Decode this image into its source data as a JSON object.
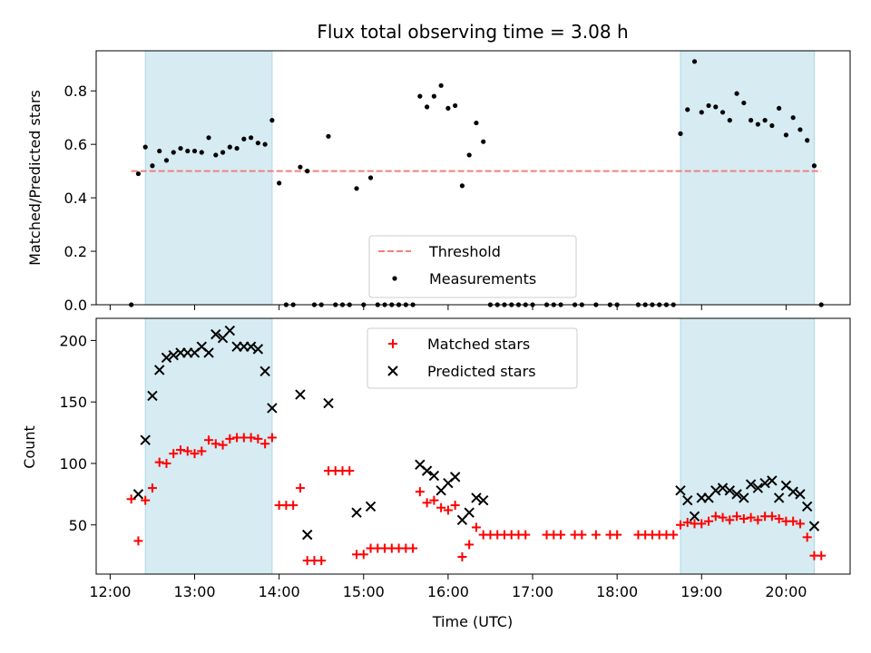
{
  "chart_data": [
    {
      "type": "scatter",
      "title": "Flux total observing time = 3.08 h",
      "ylabel": "Matched/Predicted stars",
      "xlabel": "",
      "xlim": [
        "12:00",
        "20:50"
      ],
      "ylim": [
        0,
        0.95
      ],
      "x_tick_labels": [],
      "y_ticks": [
        0.0,
        0.2,
        0.4,
        0.6,
        0.8
      ],
      "y_tick_labels": [
        "0.0",
        "0.2",
        "0.4",
        "0.6",
        "0.8"
      ],
      "shaded_intervals": [
        [
          "12:25",
          "13:55"
        ],
        [
          "18:45",
          "20:20"
        ]
      ],
      "legend": {
        "position": "bottom-center",
        "entries": [
          "Threshold",
          "Measurements"
        ]
      },
      "series": [
        {
          "name": "Threshold",
          "kind": "hline",
          "y": 0.5,
          "x_range": [
            "12:15",
            "20:25"
          ],
          "color": "#f08080"
        },
        {
          "name": "Measurements",
          "kind": "scatter",
          "color": "#000000",
          "points": [
            [
              "12:15",
              0
            ],
            [
              "12:20",
              0.49
            ],
            [
              "12:25",
              0.59
            ],
            [
              "12:30",
              0.52
            ],
            [
              "12:35",
              0.575
            ],
            [
              "12:40",
              0.54
            ],
            [
              "12:45",
              0.57
            ],
            [
              "12:50",
              0.585
            ],
            [
              "12:55",
              0.575
            ],
            [
              "13:00",
              0.575
            ],
            [
              "13:05",
              0.57
            ],
            [
              "13:10",
              0.625
            ],
            [
              "13:15",
              0.56
            ],
            [
              "13:20",
              0.57
            ],
            [
              "13:25",
              0.59
            ],
            [
              "13:30",
              0.585
            ],
            [
              "13:35",
              0.62
            ],
            [
              "13:40",
              0.625
            ],
            [
              "13:45",
              0.605
            ],
            [
              "13:50",
              0.6
            ],
            [
              "13:55",
              0.69
            ],
            [
              "14:00",
              0.455
            ],
            [
              "14:05",
              0
            ],
            [
              "14:10",
              0
            ],
            [
              "14:15",
              0.515
            ],
            [
              "14:20",
              0.5
            ],
            [
              "14:25",
              0
            ],
            [
              "14:30",
              0
            ],
            [
              "14:35",
              0.63
            ],
            [
              "14:40",
              0
            ],
            [
              "14:45",
              0
            ],
            [
              "14:50",
              0
            ],
            [
              "14:55",
              0.435
            ],
            [
              "15:00",
              0
            ],
            [
              "15:05",
              0.475
            ],
            [
              "15:10",
              0
            ],
            [
              "15:15",
              0
            ],
            [
              "15:20",
              0
            ],
            [
              "15:25",
              0
            ],
            [
              "15:30",
              0
            ],
            [
              "15:35",
              0
            ],
            [
              "15:40",
              0.78
            ],
            [
              "15:45",
              0.74
            ],
            [
              "15:50",
              0.78
            ],
            [
              "15:55",
              0.82
            ],
            [
              "16:00",
              0.735
            ],
            [
              "16:05",
              0.745
            ],
            [
              "16:10",
              0.445
            ],
            [
              "16:15",
              0.56
            ],
            [
              "16:20",
              0.68
            ],
            [
              "16:25",
              0.61
            ],
            [
              "16:30",
              0
            ],
            [
              "16:35",
              0
            ],
            [
              "16:40",
              0
            ],
            [
              "16:45",
              0
            ],
            [
              "16:50",
              0
            ],
            [
              "16:55",
              0
            ],
            [
              "17:00",
              0
            ],
            [
              "17:10",
              0
            ],
            [
              "17:15",
              0
            ],
            [
              "17:20",
              0
            ],
            [
              "17:30",
              0
            ],
            [
              "17:35",
              0
            ],
            [
              "17:45",
              0
            ],
            [
              "17:55",
              0
            ],
            [
              "18:00",
              0
            ],
            [
              "18:15",
              0
            ],
            [
              "18:20",
              0
            ],
            [
              "18:25",
              0
            ],
            [
              "18:30",
              0
            ],
            [
              "18:35",
              0
            ],
            [
              "18:40",
              0
            ],
            [
              "18:45",
              0.64
            ],
            [
              "18:50",
              0.73
            ],
            [
              "18:55",
              0.91
            ],
            [
              "19:00",
              0.72
            ],
            [
              "19:05",
              0.745
            ],
            [
              "19:10",
              0.74
            ],
            [
              "19:15",
              0.72
            ],
            [
              "19:20",
              0.69
            ],
            [
              "19:25",
              0.79
            ],
            [
              "19:30",
              0.755
            ],
            [
              "19:35",
              0.69
            ],
            [
              "19:40",
              0.675
            ],
            [
              "19:45",
              0.69
            ],
            [
              "19:50",
              0.67
            ],
            [
              "19:55",
              0.735
            ],
            [
              "20:00",
              0.635
            ],
            [
              "20:05",
              0.7
            ],
            [
              "20:10",
              0.655
            ],
            [
              "20:15",
              0.615
            ],
            [
              "20:20",
              0.52
            ],
            [
              "20:25",
              0
            ]
          ]
        }
      ]
    },
    {
      "type": "scatter",
      "title": "",
      "ylabel": "Count",
      "xlabel": "Time (UTC)",
      "xlim": [
        "12:00",
        "20:50"
      ],
      "ylim": [
        10,
        218
      ],
      "x_ticks": [
        "12:00",
        "13:00",
        "14:00",
        "15:00",
        "16:00",
        "17:00",
        "18:00",
        "19:00",
        "20:00"
      ],
      "x_tick_labels": [
        "12:00",
        "13:00",
        "14:00",
        "15:00",
        "16:00",
        "17:00",
        "18:00",
        "19:00",
        "20:00"
      ],
      "y_ticks": [
        50,
        100,
        150,
        200
      ],
      "y_tick_labels": [
        "50",
        "100",
        "150",
        "200"
      ],
      "shaded_intervals": [
        [
          "12:25",
          "13:55"
        ],
        [
          "18:45",
          "20:20"
        ]
      ],
      "legend": {
        "position": "top-center",
        "entries": [
          "Matched stars",
          "Predicted stars"
        ]
      },
      "series": [
        {
          "name": "Matched stars",
          "marker": "+",
          "color": "#ff0000",
          "points": [
            [
              "12:15",
              71
            ],
            [
              "12:20",
              37
            ],
            [
              "12:25",
              70
            ],
            [
              "12:30",
              80
            ],
            [
              "12:35",
              101
            ],
            [
              "12:40",
              100
            ],
            [
              "12:45",
              108
            ],
            [
              "12:50",
              111
            ],
            [
              "12:55",
              110
            ],
            [
              "13:00",
              108
            ],
            [
              "13:05",
              110
            ],
            [
              "13:10",
              119
            ],
            [
              "13:15",
              116
            ],
            [
              "13:20",
              115
            ],
            [
              "13:25",
              120
            ],
            [
              "13:30",
              121
            ],
            [
              "13:35",
              121
            ],
            [
              "13:40",
              121
            ],
            [
              "13:45",
              120
            ],
            [
              "13:50",
              116
            ],
            [
              "13:55",
              121
            ],
            [
              "14:00",
              66
            ],
            [
              "14:05",
              66
            ],
            [
              "14:10",
              66
            ],
            [
              "14:15",
              80
            ],
            [
              "14:20",
              21
            ],
            [
              "14:25",
              21
            ],
            [
              "14:30",
              21
            ],
            [
              "14:35",
              94
            ],
            [
              "14:40",
              94
            ],
            [
              "14:45",
              94
            ],
            [
              "14:50",
              94
            ],
            [
              "14:55",
              26
            ],
            [
              "15:00",
              26
            ],
            [
              "15:05",
              31
            ],
            [
              "15:10",
              31
            ],
            [
              "15:15",
              31
            ],
            [
              "15:20",
              31
            ],
            [
              "15:25",
              31
            ],
            [
              "15:30",
              31
            ],
            [
              "15:35",
              31
            ],
            [
              "15:40",
              77
            ],
            [
              "15:45",
              68
            ],
            [
              "15:50",
              70
            ],
            [
              "15:55",
              64
            ],
            [
              "16:00",
              62
            ],
            [
              "16:05",
              66
            ],
            [
              "16:10",
              24
            ],
            [
              "16:15",
              34
            ],
            [
              "16:20",
              48
            ],
            [
              "16:25",
              42
            ],
            [
              "16:30",
              42
            ],
            [
              "16:35",
              42
            ],
            [
              "16:40",
              42
            ],
            [
              "16:45",
              42
            ],
            [
              "16:50",
              42
            ],
            [
              "16:55",
              42
            ],
            [
              "17:10",
              42
            ],
            [
              "17:15",
              42
            ],
            [
              "17:20",
              42
            ],
            [
              "17:30",
              42
            ],
            [
              "17:35",
              42
            ],
            [
              "17:45",
              42
            ],
            [
              "17:55",
              42
            ],
            [
              "18:00",
              42
            ],
            [
              "18:15",
              42
            ],
            [
              "18:20",
              42
            ],
            [
              "18:25",
              42
            ],
            [
              "18:30",
              42
            ],
            [
              "18:35",
              42
            ],
            [
              "18:40",
              42
            ],
            [
              "18:45",
              50
            ],
            [
              "18:50",
              52
            ],
            [
              "18:55",
              51
            ],
            [
              "19:00",
              51
            ],
            [
              "19:05",
              53
            ],
            [
              "19:10",
              57
            ],
            [
              "19:15",
              56
            ],
            [
              "19:20",
              54
            ],
            [
              "19:25",
              57
            ],
            [
              "19:30",
              55
            ],
            [
              "19:35",
              56
            ],
            [
              "19:40",
              54
            ],
            [
              "19:45",
              57
            ],
            [
              "19:50",
              57
            ],
            [
              "19:55",
              55
            ],
            [
              "20:00",
              53
            ],
            [
              "20:05",
              53
            ],
            [
              "20:10",
              51
            ],
            [
              "20:15",
              40
            ],
            [
              "20:20",
              25
            ],
            [
              "20:25",
              25
            ]
          ]
        },
        {
          "name": "Predicted stars",
          "marker": "x",
          "color": "#000000",
          "points": [
            [
              "12:20",
              75
            ],
            [
              "12:25",
              119
            ],
            [
              "12:30",
              155
            ],
            [
              "12:35",
              176
            ],
            [
              "12:40",
              186
            ],
            [
              "12:45",
              188
            ],
            [
              "12:50",
              190
            ],
            [
              "12:55",
              190
            ],
            [
              "13:00",
              190
            ],
            [
              "13:05",
              195
            ],
            [
              "13:10",
              190
            ],
            [
              "13:15",
              205
            ],
            [
              "13:20",
              202
            ],
            [
              "13:25",
              208
            ],
            [
              "13:30",
              195
            ],
            [
              "13:35",
              195
            ],
            [
              "13:40",
              195
            ],
            [
              "13:45",
              193
            ],
            [
              "13:50",
              175
            ],
            [
              "13:55",
              145
            ],
            [
              "14:15",
              156
            ],
            [
              "14:20",
              42
            ],
            [
              "14:35",
              149
            ],
            [
              "14:55",
              60
            ],
            [
              "15:05",
              65
            ],
            [
              "15:40",
              99
            ],
            [
              "15:45",
              94
            ],
            [
              "15:50",
              90
            ],
            [
              "15:55",
              78
            ],
            [
              "16:00",
              84
            ],
            [
              "16:05",
              89
            ],
            [
              "16:10",
              54
            ],
            [
              "16:15",
              60
            ],
            [
              "16:20",
              72
            ],
            [
              "16:25",
              70
            ],
            [
              "18:45",
              78
            ],
            [
              "18:50",
              70
            ],
            [
              "18:55",
              57
            ],
            [
              "19:00",
              72
            ],
            [
              "19:05",
              72
            ],
            [
              "19:10",
              78
            ],
            [
              "19:15",
              80
            ],
            [
              "19:20",
              78
            ],
            [
              "19:25",
              75
            ],
            [
              "19:30",
              72
            ],
            [
              "19:35",
              83
            ],
            [
              "19:40",
              80
            ],
            [
              "19:45",
              84
            ],
            [
              "19:50",
              86
            ],
            [
              "19:55",
              72
            ],
            [
              "20:00",
              82
            ],
            [
              "20:05",
              77
            ],
            [
              "20:10",
              75
            ],
            [
              "20:15",
              65
            ],
            [
              "20:20",
              49
            ]
          ]
        }
      ]
    }
  ]
}
